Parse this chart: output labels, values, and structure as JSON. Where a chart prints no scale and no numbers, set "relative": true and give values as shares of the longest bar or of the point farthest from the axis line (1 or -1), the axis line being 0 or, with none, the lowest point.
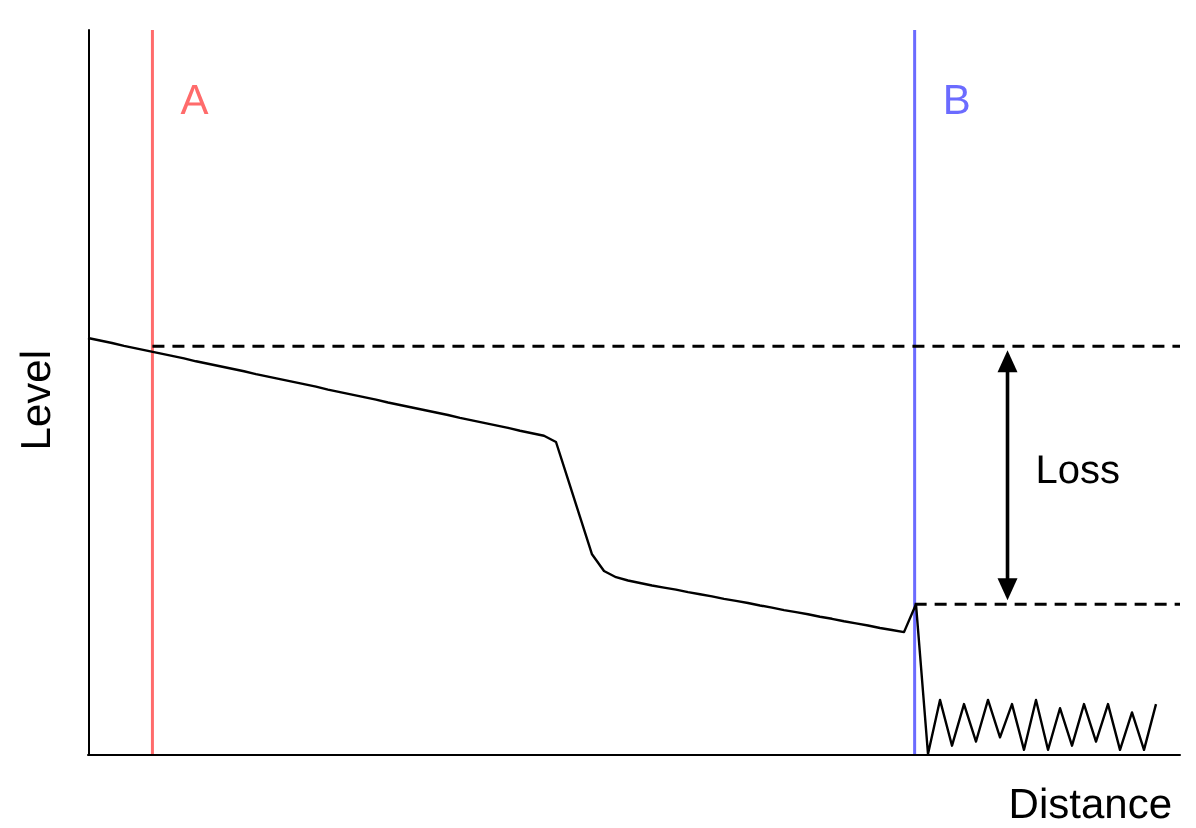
{
  "chart_data": {
    "type": "line",
    "relative": true,
    "xlabel": "Distance",
    "ylabel": "Level",
    "grid": false,
    "line_style": "solid",
    "categories": [
      null,
      null,
      null,
      null,
      null,
      null,
      null,
      null,
      null,
      null,
      null,
      null,
      null,
      null,
      null,
      null,
      null,
      null,
      null,
      null,
      null,
      null,
      null,
      null,
      null,
      null,
      null,
      null,
      null,
      null,
      null,
      null,
      null,
      null,
      null,
      null,
      null,
      null,
      null,
      null,
      null,
      null,
      null,
      null,
      null,
      null,
      null,
      null,
      null,
      null,
      null,
      null,
      null,
      null,
      null,
      null,
      null,
      null,
      null,
      null,
      null,
      null,
      null,
      null,
      null,
      null,
      null,
      null,
      null,
      null,
      null,
      null,
      null,
      null,
      null,
      null,
      null,
      null,
      null,
      null,
      null,
      null,
      null,
      null,
      null,
      null,
      null,
      null,
      null,
      null,
      null,
      null
    ],
    "series": [
      {
        "color": "#000000",
        "values": [
          1,
          0.994,
          0.988,
          0.981,
          0.975,
          0.969,
          0.963,
          0.957,
          0.951,
          0.944,
          0.938,
          0.932,
          0.926,
          0.92,
          0.913,
          0.907,
          0.901,
          0.895,
          0.889,
          0.883,
          0.876,
          0.87,
          0.864,
          0.858,
          0.852,
          0.845,
          0.839,
          0.833,
          0.827,
          0.821,
          0.815,
          0.808,
          0.802,
          0.796,
          0.79,
          0.784,
          0.777,
          0.771,
          0.765,
          0.75,
          0.66,
          0.57,
          0.48,
          0.44,
          0.425,
          0.417,
          0.411,
          0.405,
          0.4,
          0.395,
          0.389,
          0.384,
          0.379,
          0.373,
          0.368,
          0.363,
          0.357,
          0.352,
          0.346,
          0.341,
          0.336,
          0.33,
          0.325,
          0.319,
          0.314,
          0.309,
          0.303,
          0.298,
          0.293,
          0.36,
          0,
          0.13,
          0.02,
          0.12,
          0.03,
          0.13,
          0.04,
          0.12,
          0.01,
          0.13,
          0.01,
          0.11,
          0.02,
          0.12,
          0.03,
          0.12,
          0.01,
          0.1,
          0.01,
          0.12,
          null,
          null
        ]
      }
    ],
    "ref_lines": [
      {
        "axis": "x",
        "label": "A",
        "color": "#ff6b6b",
        "line_style": "solid"
      },
      {
        "axis": "x",
        "label": "B",
        "color": "#6b6bff",
        "line_style": "solid"
      },
      {
        "axis": "y",
        "value": 0.98,
        "color": "#000000",
        "line_style": "dashed"
      },
      {
        "axis": "y",
        "value": 0.36,
        "color": "#000000",
        "line_style": "dashed"
      }
    ],
    "annotations": [
      "Loss"
    ]
  }
}
